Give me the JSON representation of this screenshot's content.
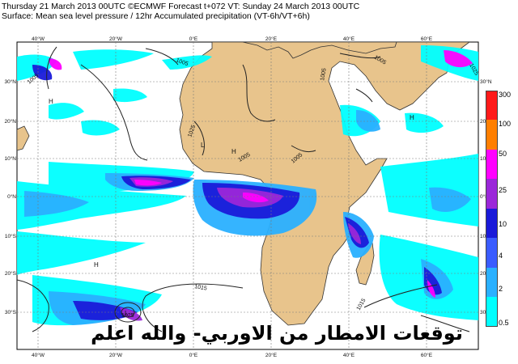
{
  "header": {
    "line1": "Thursday 21 March 2013 00UTC ©ECMWF Forecast t+072 VT: Sunday 24 March 2013 00UTC",
    "line2": "Surface: Mean sea level pressure / 12hr Accumulated precipitation (VT-6h/VT+6h)"
  },
  "map": {
    "lon_labels_top": [
      "40°W",
      "20°W",
      "0°E",
      "20°E",
      "40°E",
      "60°E"
    ],
    "lon_labels_bottom": [
      "40°W",
      "20°W",
      "0°E",
      "20°E",
      "40°E",
      "60°E"
    ],
    "lat_labels_left": [
      "30°N",
      "20°N",
      "10°N",
      "0°N",
      "10°S",
      "20°S",
      "30°S"
    ],
    "lat_labels_right": [
      "30°N",
      "20°N",
      "10°N",
      "0°N",
      "10°S",
      "20°S",
      "30°S"
    ],
    "isobar_labels": [
      "1005",
      "1005",
      "1005",
      "1025",
      "1005",
      "1005",
      "1005",
      "1015",
      "1015",
      "1025",
      "1025"
    ],
    "pressure_markers": [
      "H",
      "H",
      "H",
      "L",
      "L",
      "H"
    ],
    "colors": {
      "ocean": "#ffffff",
      "land": "#e8c48c",
      "grid": "#7a7a7a"
    }
  },
  "legend": {
    "levels": [
      {
        "label": "300",
        "color": "#ff1a1a"
      },
      {
        "label": "100",
        "color": "#ff7f00"
      },
      {
        "label": "50",
        "color": "#ff00ff"
      },
      {
        "label": "25",
        "color": "#9b27d9"
      },
      {
        "label": "10",
        "color": "#1a1ad9"
      },
      {
        "label": "4",
        "color": "#3a5cff"
      },
      {
        "label": "2",
        "color": "#2ab0ff"
      },
      {
        "label": "0.5",
        "color": "#00ffff"
      }
    ]
  },
  "caption": "توقعات الامطار من الاوربي- والله اعلم"
}
